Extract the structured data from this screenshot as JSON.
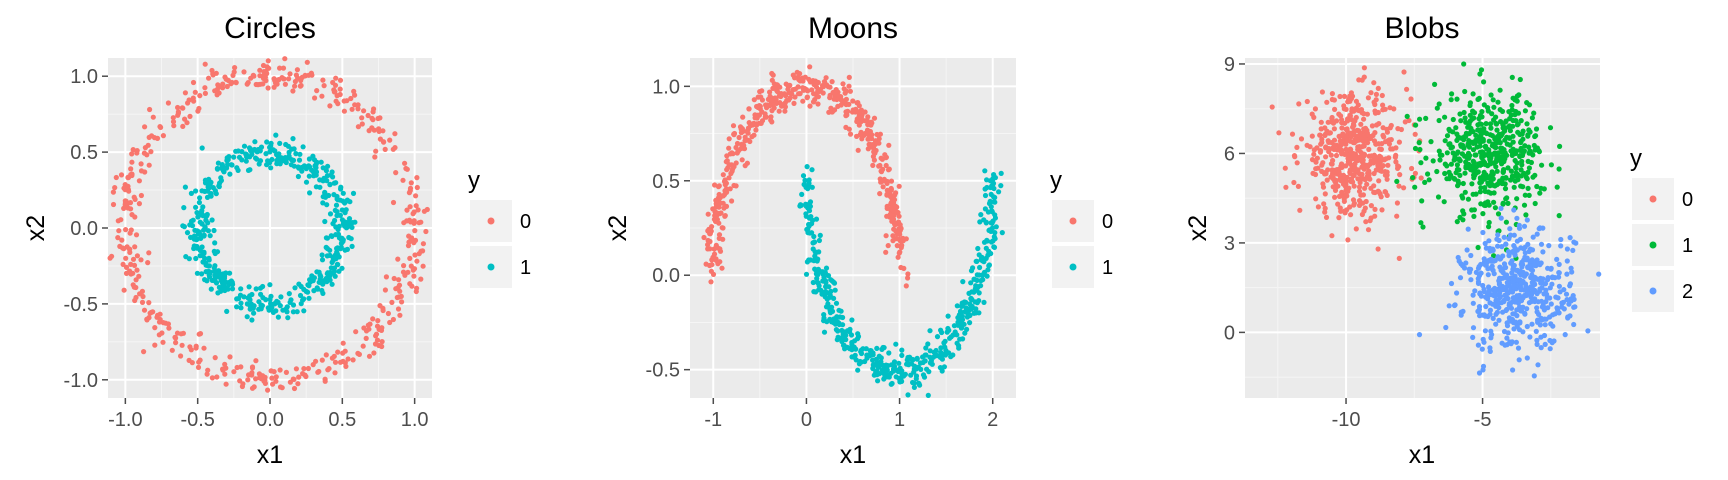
{
  "colors": {
    "panel_bg": "#ebebeb",
    "grid_major": "#ffffff",
    "grid_minor": "#f5f5f5",
    "tick_color": "#4d4d4d",
    "legend_key_bg": "#f2f2f2",
    "class_0": "#f8766d",
    "class_1": "#00bfc4",
    "blobs_class_0": "#f8766d",
    "blobs_class_1": "#00ba38",
    "blobs_class_2": "#619cff"
  },
  "chart_data": [
    {
      "type": "scatter",
      "title": "Circles",
      "xlabel": "x1",
      "ylabel": "x2",
      "xlim": [
        -1.12,
        1.12
      ],
      "ylim": [
        -1.12,
        1.12
      ],
      "xticks": [
        -1.0,
        -0.5,
        0.0,
        0.5,
        1.0
      ],
      "xtick_labels": [
        "-1.0",
        "-0.5",
        "0.0",
        "0.5",
        "1.0"
      ],
      "yticks": [
        -1.0,
        -0.5,
        0.0,
        0.5,
        1.0
      ],
      "ytick_labels": [
        "-1.0",
        "-0.5",
        "0.0",
        "0.5",
        "1.0"
      ],
      "grid": true,
      "legend": {
        "title": "y",
        "position": "right",
        "entries": [
          "0",
          "1"
        ]
      },
      "series": [
        {
          "name": "0",
          "shape": "ring",
          "center": [
            0,
            0
          ],
          "radius": 1.0,
          "noise": 0.05,
          "n": 500
        },
        {
          "name": "1",
          "shape": "ring",
          "center": [
            0,
            0
          ],
          "radius": 0.5,
          "noise": 0.05,
          "n": 500
        }
      ]
    },
    {
      "type": "scatter",
      "title": "Moons",
      "xlabel": "x1",
      "ylabel": "x2",
      "xlim": [
        -1.25,
        2.25
      ],
      "ylim": [
        -0.65,
        1.15
      ],
      "xticks": [
        -1,
        0,
        1,
        2
      ],
      "xtick_labels": [
        "-1",
        "0",
        "1",
        "2"
      ],
      "yticks": [
        -0.5,
        0.0,
        0.5,
        1.0
      ],
      "ytick_labels": [
        "-0.5",
        "0.0",
        "0.5",
        "1.0"
      ],
      "grid": true,
      "legend": {
        "title": "y",
        "position": "right",
        "entries": [
          "0",
          "1"
        ]
      },
      "series": [
        {
          "name": "0",
          "shape": "upper-moon",
          "center": [
            0,
            0
          ],
          "radius": 1.0,
          "noise": 0.05,
          "n": 500
        },
        {
          "name": "1",
          "shape": "lower-moon",
          "center": [
            1,
            0.5
          ],
          "radius": 1.0,
          "noise": 0.05,
          "n": 500
        }
      ]
    },
    {
      "type": "scatter",
      "title": "Blobs",
      "xlabel": "x1",
      "ylabel": "x2",
      "xlim": [
        -13.7,
        -0.7
      ],
      "ylim": [
        -2.2,
        9.2
      ],
      "xticks": [
        -10,
        -5
      ],
      "xtick_labels": [
        "-10",
        "-5"
      ],
      "yticks": [
        0,
        3,
        6,
        9
      ],
      "ytick_labels": [
        "0",
        "3",
        "6",
        "9"
      ],
      "grid": true,
      "legend": {
        "title": "y",
        "position": "right",
        "entries": [
          "0",
          "1",
          "2"
        ]
      },
      "series": [
        {
          "name": "0",
          "shape": "blob",
          "center": [
            -9.7,
            5.9
          ],
          "spread": 1.0,
          "n": 500
        },
        {
          "name": "1",
          "shape": "blob",
          "center": [
            -4.8,
            6.0
          ],
          "spread": 1.0,
          "n": 500
        },
        {
          "name": "2",
          "shape": "blob",
          "center": [
            -3.7,
            1.4
          ],
          "spread": 1.0,
          "n": 500
        }
      ]
    }
  ]
}
